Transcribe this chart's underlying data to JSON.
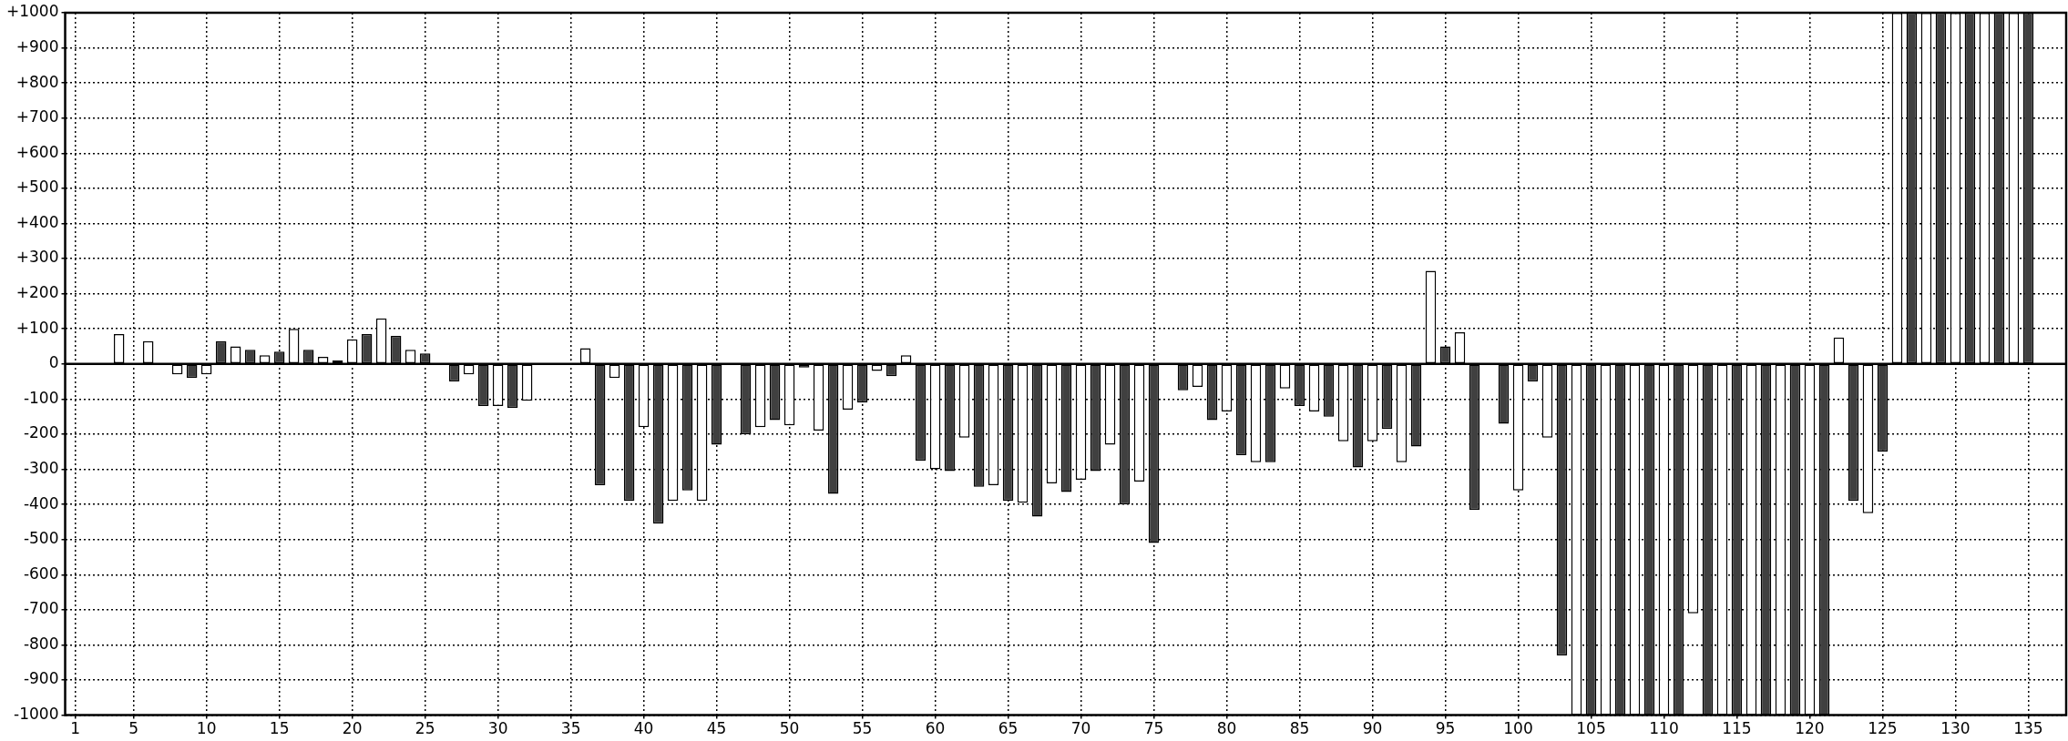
{
  "chart_data": {
    "type": "bar",
    "x": [
      4,
      6,
      8,
      9,
      10,
      11,
      12,
      13,
      14,
      15,
      16,
      17,
      18,
      19,
      20,
      21,
      22,
      23,
      24,
      25,
      27,
      28,
      29,
      30,
      31,
      32,
      36,
      37,
      38,
      39,
      40,
      41,
      42,
      43,
      44,
      45,
      47,
      48,
      49,
      50,
      51,
      52,
      53,
      54,
      55,
      56,
      57,
      58,
      59,
      60,
      61,
      62,
      63,
      64,
      65,
      66,
      67,
      68,
      69,
      70,
      71,
      72,
      73,
      74,
      75,
      77,
      78,
      79,
      80,
      81,
      82,
      83,
      84,
      85,
      86,
      87,
      88,
      89,
      90,
      91,
      92,
      93,
      94,
      95,
      96,
      97,
      99,
      100,
      101,
      102,
      103,
      104,
      105,
      106,
      107,
      108,
      109,
      110,
      111,
      112,
      113,
      114,
      115,
      116,
      117,
      118,
      119,
      120,
      121,
      122,
      123,
      124,
      125,
      126,
      127,
      128,
      129,
      130,
      131,
      132,
      133,
      134,
      135
    ],
    "values": [
      85,
      65,
      -30,
      -40,
      -30,
      65,
      50,
      40,
      25,
      35,
      100,
      40,
      20,
      10,
      70,
      85,
      130,
      80,
      40,
      30,
      -50,
      -30,
      -120,
      -120,
      -125,
      -105,
      45,
      -345,
      -40,
      -390,
      -180,
      -455,
      -390,
      -360,
      -390,
      -230,
      -200,
      -180,
      -160,
      -175,
      -10,
      -190,
      -370,
      -130,
      -110,
      -20,
      -35,
      25,
      -275,
      -300,
      -305,
      -210,
      -350,
      -345,
      -390,
      -395,
      -435,
      -340,
      -365,
      -330,
      -305,
      -230,
      -400,
      -335,
      -510,
      -75,
      -65,
      -160,
      -135,
      -260,
      -280,
      -280,
      -70,
      -120,
      -135,
      -150,
      -220,
      -295,
      -220,
      -185,
      -280,
      -235,
      265,
      50,
      90,
      -415,
      -170,
      -360,
      -50,
      -210,
      -830,
      -1000,
      -1000,
      -1000,
      -1000,
      -1000,
      -1000,
      -1000,
      -1000,
      -710,
      -1000,
      -1000,
      -1000,
      -1000,
      -1000,
      -1000,
      -1000,
      -1000,
      -1000,
      75,
      -390,
      -425,
      -250,
      1000,
      1000,
      1000,
      1000,
      1000,
      1000,
      1000,
      1000,
      1000,
      1000
    ],
    "colors": [
      "#ffffff",
      "#ffffff",
      "#ffffff",
      "#404040",
      "#ffffff",
      "#404040",
      "#ffffff",
      "#404040",
      "#ffffff",
      "#404040",
      "#ffffff",
      "#404040",
      "#ffffff",
      "#404040",
      "#ffffff",
      "#404040",
      "#ffffff",
      "#404040",
      "#ffffff",
      "#404040",
      "#404040",
      "#ffffff",
      "#404040",
      "#ffffff",
      "#404040",
      "#ffffff",
      "#ffffff",
      "#404040",
      "#ffffff",
      "#404040",
      "#ffffff",
      "#404040",
      "#ffffff",
      "#404040",
      "#ffffff",
      "#404040",
      "#404040",
      "#ffffff",
      "#404040",
      "#ffffff",
      "#404040",
      "#ffffff",
      "#404040",
      "#ffffff",
      "#404040",
      "#ffffff",
      "#404040",
      "#ffffff",
      "#404040",
      "#ffffff",
      "#404040",
      "#ffffff",
      "#404040",
      "#ffffff",
      "#404040",
      "#ffffff",
      "#404040",
      "#ffffff",
      "#404040",
      "#ffffff",
      "#404040",
      "#ffffff",
      "#404040",
      "#ffffff",
      "#404040",
      "#404040",
      "#ffffff",
      "#404040",
      "#ffffff",
      "#404040",
      "#ffffff",
      "#404040",
      "#ffffff",
      "#404040",
      "#ffffff",
      "#404040",
      "#ffffff",
      "#404040",
      "#ffffff",
      "#404040",
      "#ffffff",
      "#404040",
      "#ffffff",
      "#404040",
      "#ffffff",
      "#404040",
      "#404040",
      "#ffffff",
      "#404040",
      "#ffffff",
      "#404040",
      "#ffffff",
      "#404040",
      "#ffffff",
      "#404040",
      "#ffffff",
      "#404040",
      "#ffffff",
      "#404040",
      "#ffffff",
      "#404040",
      "#ffffff",
      "#404040",
      "#ffffff",
      "#404040",
      "#ffffff",
      "#404040",
      "#ffffff",
      "#404040",
      "#ffffff",
      "#404040",
      "#ffffff",
      "#404040",
      "#ffffff",
      "#404040",
      "#ffffff",
      "#404040",
      "#ffffff",
      "#404040",
      "#ffffff",
      "#404040",
      "#ffffff",
      "#404040"
    ],
    "xlim": [
      0.3,
      137.6
    ],
    "xticks": [
      1,
      5,
      10,
      15,
      20,
      25,
      30,
      35,
      40,
      45,
      50,
      55,
      60,
      65,
      70,
      75,
      80,
      85,
      90,
      95,
      100,
      105,
      110,
      115,
      120,
      125,
      130,
      135
    ],
    "ylim": [
      -1000,
      1000
    ],
    "yticks": [
      {
        "value": -1000,
        "label": "-1000"
      },
      {
        "value": -900,
        "label": "-900"
      },
      {
        "value": -800,
        "label": "-800"
      },
      {
        "value": -700,
        "label": "-700"
      },
      {
        "value": -600,
        "label": "-600"
      },
      {
        "value": -500,
        "label": "-500"
      },
      {
        "value": -400,
        "label": "-400"
      },
      {
        "value": -300,
        "label": "-300"
      },
      {
        "value": -200,
        "label": "-200"
      },
      {
        "value": -100,
        "label": "-100"
      },
      0,
      {
        "value": 100,
        "label": "+100"
      },
      {
        "value": 200,
        "label": "+200"
      },
      {
        "value": 300,
        "label": "+300"
      },
      {
        "value": 400,
        "label": "+400"
      },
      {
        "value": 500,
        "label": "+500"
      },
      {
        "value": 600,
        "label": "+600"
      },
      {
        "value": 700,
        "label": "+700"
      },
      {
        "value": 800,
        "label": "+800"
      },
      {
        "value": 900,
        "label": "+900"
      },
      {
        "value": 1000,
        "label": "+1000"
      }
    ],
    "grid": true,
    "legend": false
  }
}
